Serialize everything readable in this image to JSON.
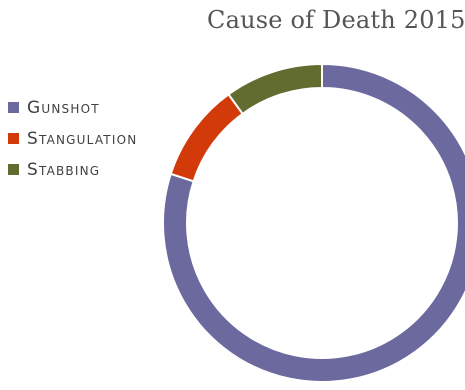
{
  "chart_data": {
    "type": "pie",
    "variant": "donut",
    "title": "Cause of Death 2015",
    "categories": [
      "Gunshot",
      "Stangulation",
      "Stabbing"
    ],
    "values": [
      80,
      10,
      10
    ],
    "unit": "percent",
    "colors": [
      "#6b699e",
      "#d23a0a",
      "#626c2e"
    ],
    "legend_position": "left",
    "start_angle_deg": 0,
    "direction": "clockwise"
  }
}
